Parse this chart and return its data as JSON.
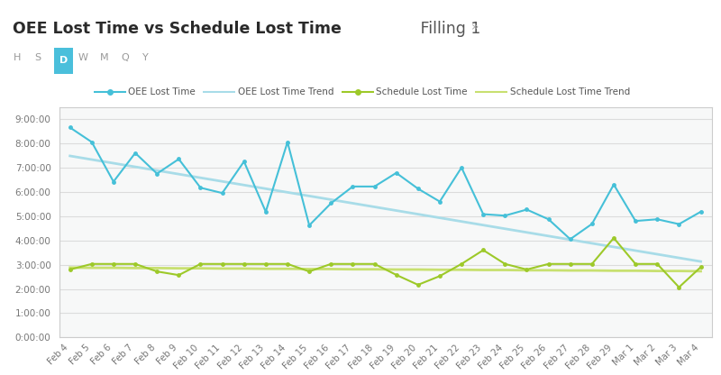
{
  "title_bold": "OEE Lost Time vs Schedule Lost Time",
  "title_normal": " Filling 1",
  "title_arrow": " »",
  "buttons": [
    "H",
    "S",
    "D",
    "W",
    "M",
    "Q",
    "Y"
  ],
  "active_button": "D",
  "legend": [
    "OEE Lost Time",
    "OEE Lost Time Trend",
    "Schedule Lost Time",
    "Schedule Lost Time Trend"
  ],
  "x_labels": [
    "Feb 4",
    "Feb 5",
    "Feb 6",
    "Feb 7",
    "Feb 8",
    "Feb 9",
    "Feb 10",
    "Feb 11",
    "Feb 12",
    "Feb 13",
    "Feb 14",
    "Feb 15",
    "Feb 16",
    "Feb 17",
    "Feb 18",
    "Feb 19",
    "Feb 20",
    "Feb 21",
    "Feb 22",
    "Feb 23",
    "Feb 24",
    "Feb 25",
    "Feb 26",
    "Feb 27",
    "Feb 28",
    "Feb 29",
    "Mar 1",
    "Mar 2",
    "Mar 3",
    "Mar 4"
  ],
  "oee_lost_time": [
    8.65,
    8.05,
    6.42,
    7.6,
    6.75,
    7.35,
    6.17,
    5.95,
    7.25,
    5.18,
    8.05,
    4.62,
    5.53,
    6.22,
    6.22,
    6.78,
    6.13,
    5.6,
    7.0,
    5.08,
    5.02,
    5.27,
    4.87,
    4.05,
    4.68,
    6.3,
    4.8,
    4.87,
    4.67,
    5.18
  ],
  "oee_trend": [
    7.48,
    7.33,
    7.18,
    7.03,
    6.88,
    6.73,
    6.58,
    6.43,
    6.28,
    6.13,
    5.98,
    5.83,
    5.68,
    5.53,
    5.38,
    5.23,
    5.08,
    4.93,
    4.78,
    4.63,
    4.48,
    4.33,
    4.18,
    4.03,
    3.88,
    3.73,
    3.58,
    3.43,
    3.28,
    3.13
  ],
  "schedule_lost_time": [
    2.8,
    3.03,
    3.03,
    3.03,
    2.72,
    2.57,
    3.03,
    3.03,
    3.03,
    3.03,
    3.03,
    2.72,
    3.03,
    3.03,
    3.03,
    2.58,
    2.17,
    2.53,
    3.03,
    3.6,
    3.03,
    2.8,
    3.03,
    3.03,
    3.03,
    4.1,
    3.03,
    3.03,
    2.07,
    2.9
  ],
  "schedule_trend": [
    2.88,
    2.87,
    2.87,
    2.86,
    2.86,
    2.85,
    2.85,
    2.84,
    2.84,
    2.83,
    2.83,
    2.82,
    2.82,
    2.81,
    2.81,
    2.8,
    2.8,
    2.79,
    2.79,
    2.78,
    2.78,
    2.77,
    2.77,
    2.76,
    2.76,
    2.75,
    2.75,
    2.74,
    2.74,
    2.73
  ],
  "oee_color": "#45C0D8",
  "oee_trend_color": "#A8DCE8",
  "schedule_color": "#9DC929",
  "schedule_trend_color": "#C8E070",
  "bg_color": "#F2F2F2",
  "plot_bg": "#F7F8F8",
  "grid_color": "#DCDCDC",
  "border_color": "#CCCCCC",
  "ylim_min": 0,
  "ylim_max": 9.5,
  "ytick_hours": [
    0,
    1,
    2,
    3,
    4,
    5,
    6,
    7,
    8,
    9
  ]
}
